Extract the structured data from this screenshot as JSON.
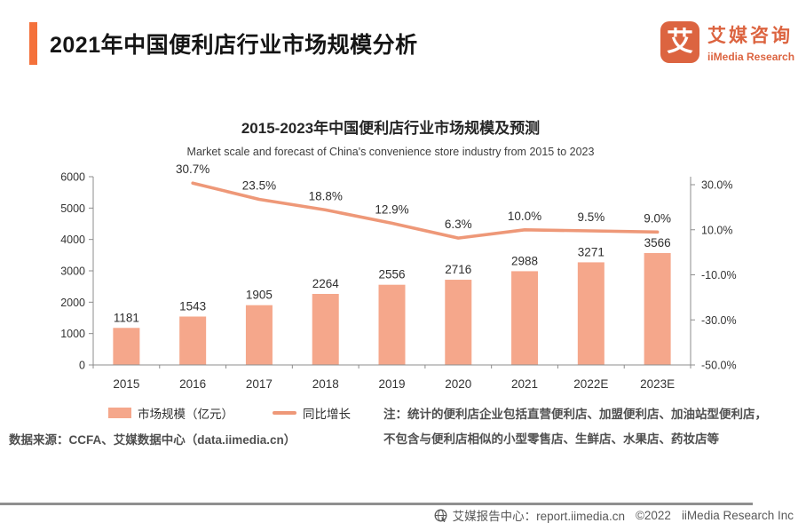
{
  "header": {
    "title": "2021年中国便利店行业市场规模分析",
    "logo": {
      "icon_glyph": "艾",
      "name_cn": "艾媒咨询",
      "name_en": "iiMedia Research"
    }
  },
  "chart": {
    "title": "2015-2023年中国便利店行业市场规模及预测",
    "subtitle": "Market scale and forecast of China's convenience store industry from 2015 to 2023"
  },
  "chart_data": {
    "type": "bar+line",
    "categories": [
      "2015",
      "2016",
      "2017",
      "2018",
      "2019",
      "2020",
      "2021",
      "2022E",
      "2023E"
    ],
    "series": [
      {
        "name": "市场规模（亿元）",
        "type": "bar",
        "values": [
          1181,
          1543,
          1905,
          2264,
          2556,
          2716,
          2988,
          3271,
          3566
        ],
        "labels": [
          "1181",
          "1543",
          "1905",
          "2264",
          "2556",
          "2716",
          "2988",
          "3271",
          "3566"
        ],
        "color": "#F5A78B",
        "axis": "left"
      },
      {
        "name": "同比增长",
        "type": "line",
        "values": [
          null,
          30.7,
          23.5,
          18.8,
          12.9,
          6.3,
          10.0,
          9.5,
          9.0
        ],
        "labels": [
          null,
          "30.7%",
          "23.5%",
          "18.8%",
          "12.9%",
          "6.3%",
          "10.0%",
          "9.5%",
          "9.0%"
        ],
        "color": "#EE9878",
        "axis": "right"
      }
    ],
    "left_axis": {
      "min": 0,
      "max": 6000,
      "step": 1000,
      "tick_labels": [
        "0",
        "1000",
        "2000",
        "3000",
        "4000",
        "5000",
        "6000"
      ]
    },
    "right_axis": {
      "min": -50,
      "max": 30,
      "tick_values": [
        30,
        10,
        -10,
        -30,
        -50
      ],
      "tick_labels": [
        "30.0%",
        "10.0%",
        "-10.0%",
        "-30.0%",
        "-50.0%"
      ]
    },
    "grid": false,
    "legend_position": "bottom-left"
  },
  "notes": {
    "line1": "注：统计的便利店企业包括直营便利店、加盟便利店、加油站型便利店，",
    "line2": "不包含与便利店相似的小型零售店、生鲜店、水果店、药妆店等"
  },
  "source": "数据来源：CCFA、艾媒数据中心（data.iimedia.cn）",
  "footer": {
    "center_label": "艾媒报告中心：report.iimedia.cn",
    "copyright": "©2022",
    "company": "iiMedia Research Inc"
  },
  "colors": {
    "accent_orange": "#F4713B",
    "logo_orange": "#DC6440",
    "bar_fill": "#F5A78B",
    "line_stroke": "#EE9878",
    "axis_gray": "#8C8C8C",
    "label_dark": "#2E2E2E",
    "note_gray": "#4F4F4F"
  }
}
